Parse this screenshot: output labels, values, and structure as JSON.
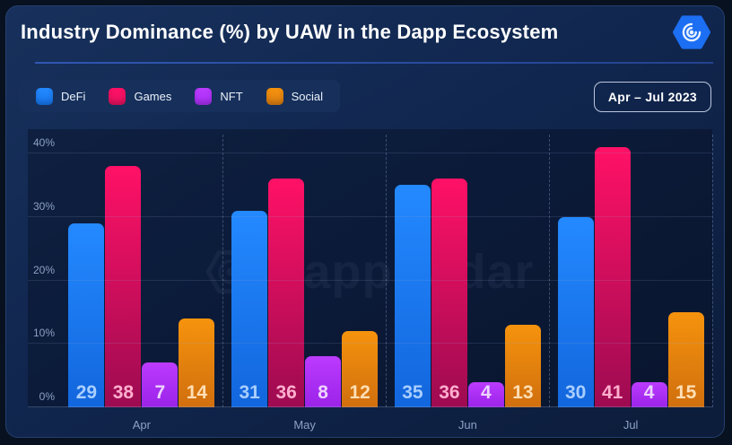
{
  "header": {
    "title": "Industry Dominance (%) by UAW in the Dapp Ecosystem",
    "logo_name": "dappradar-logo"
  },
  "filters": {
    "date_range": "Apr – Jul 2023"
  },
  "colors": {
    "page_bg": "#081120",
    "card_bg_top": "#17315C",
    "card_bg_bottom": "#0C1C3A",
    "divider_accent": "#2C50A6",
    "legend_bg": "#16305B",
    "badge_border": "#BCC7DE",
    "axis_text": "#8CA1C5",
    "logo_blue": "#1C6EF2"
  },
  "chart_data": {
    "type": "bar",
    "title": "Industry Dominance (%) by UAW in the Dapp Ecosystem",
    "categories": [
      "Apr",
      "May",
      "Jun",
      "Jul"
    ],
    "series": [
      {
        "name": "DeFi",
        "values": [
          29,
          31,
          35,
          30
        ],
        "color_top": "#2489FF",
        "color_bottom": "#1266DD",
        "label_color": "#A9CEFF",
        "swatch": "#1677F0"
      },
      {
        "name": "Games",
        "values": [
          38,
          36,
          36,
          41
        ],
        "color_top": "#FF1166",
        "color_bottom": "#9D0B51",
        "label_color": "#FFAECE",
        "swatch": "#E8115F"
      },
      {
        "name": "NFT",
        "values": [
          7,
          8,
          4,
          4
        ],
        "color_top": "#BC3BFF",
        "color_bottom": "#9B23E8",
        "label_color": "#EDD3FF",
        "swatch": "#A92EF5"
      },
      {
        "name": "Social",
        "values": [
          14,
          12,
          13,
          15
        ],
        "color_top": "#F6930D",
        "color_bottom": "#D06F0E",
        "label_color": "#FFDFB5",
        "swatch": "#DB7E12"
      }
    ],
    "xlabel": "",
    "ylabel": "",
    "ylim": [
      0,
      40
    ],
    "y_ticks": [
      "0%",
      "10%",
      "20%",
      "30%",
      "40%"
    ],
    "y_tick_values": [
      0,
      10,
      20,
      30,
      40
    ],
    "grid": true,
    "legend_position": "top-left",
    "watermark": "DappRadar"
  }
}
